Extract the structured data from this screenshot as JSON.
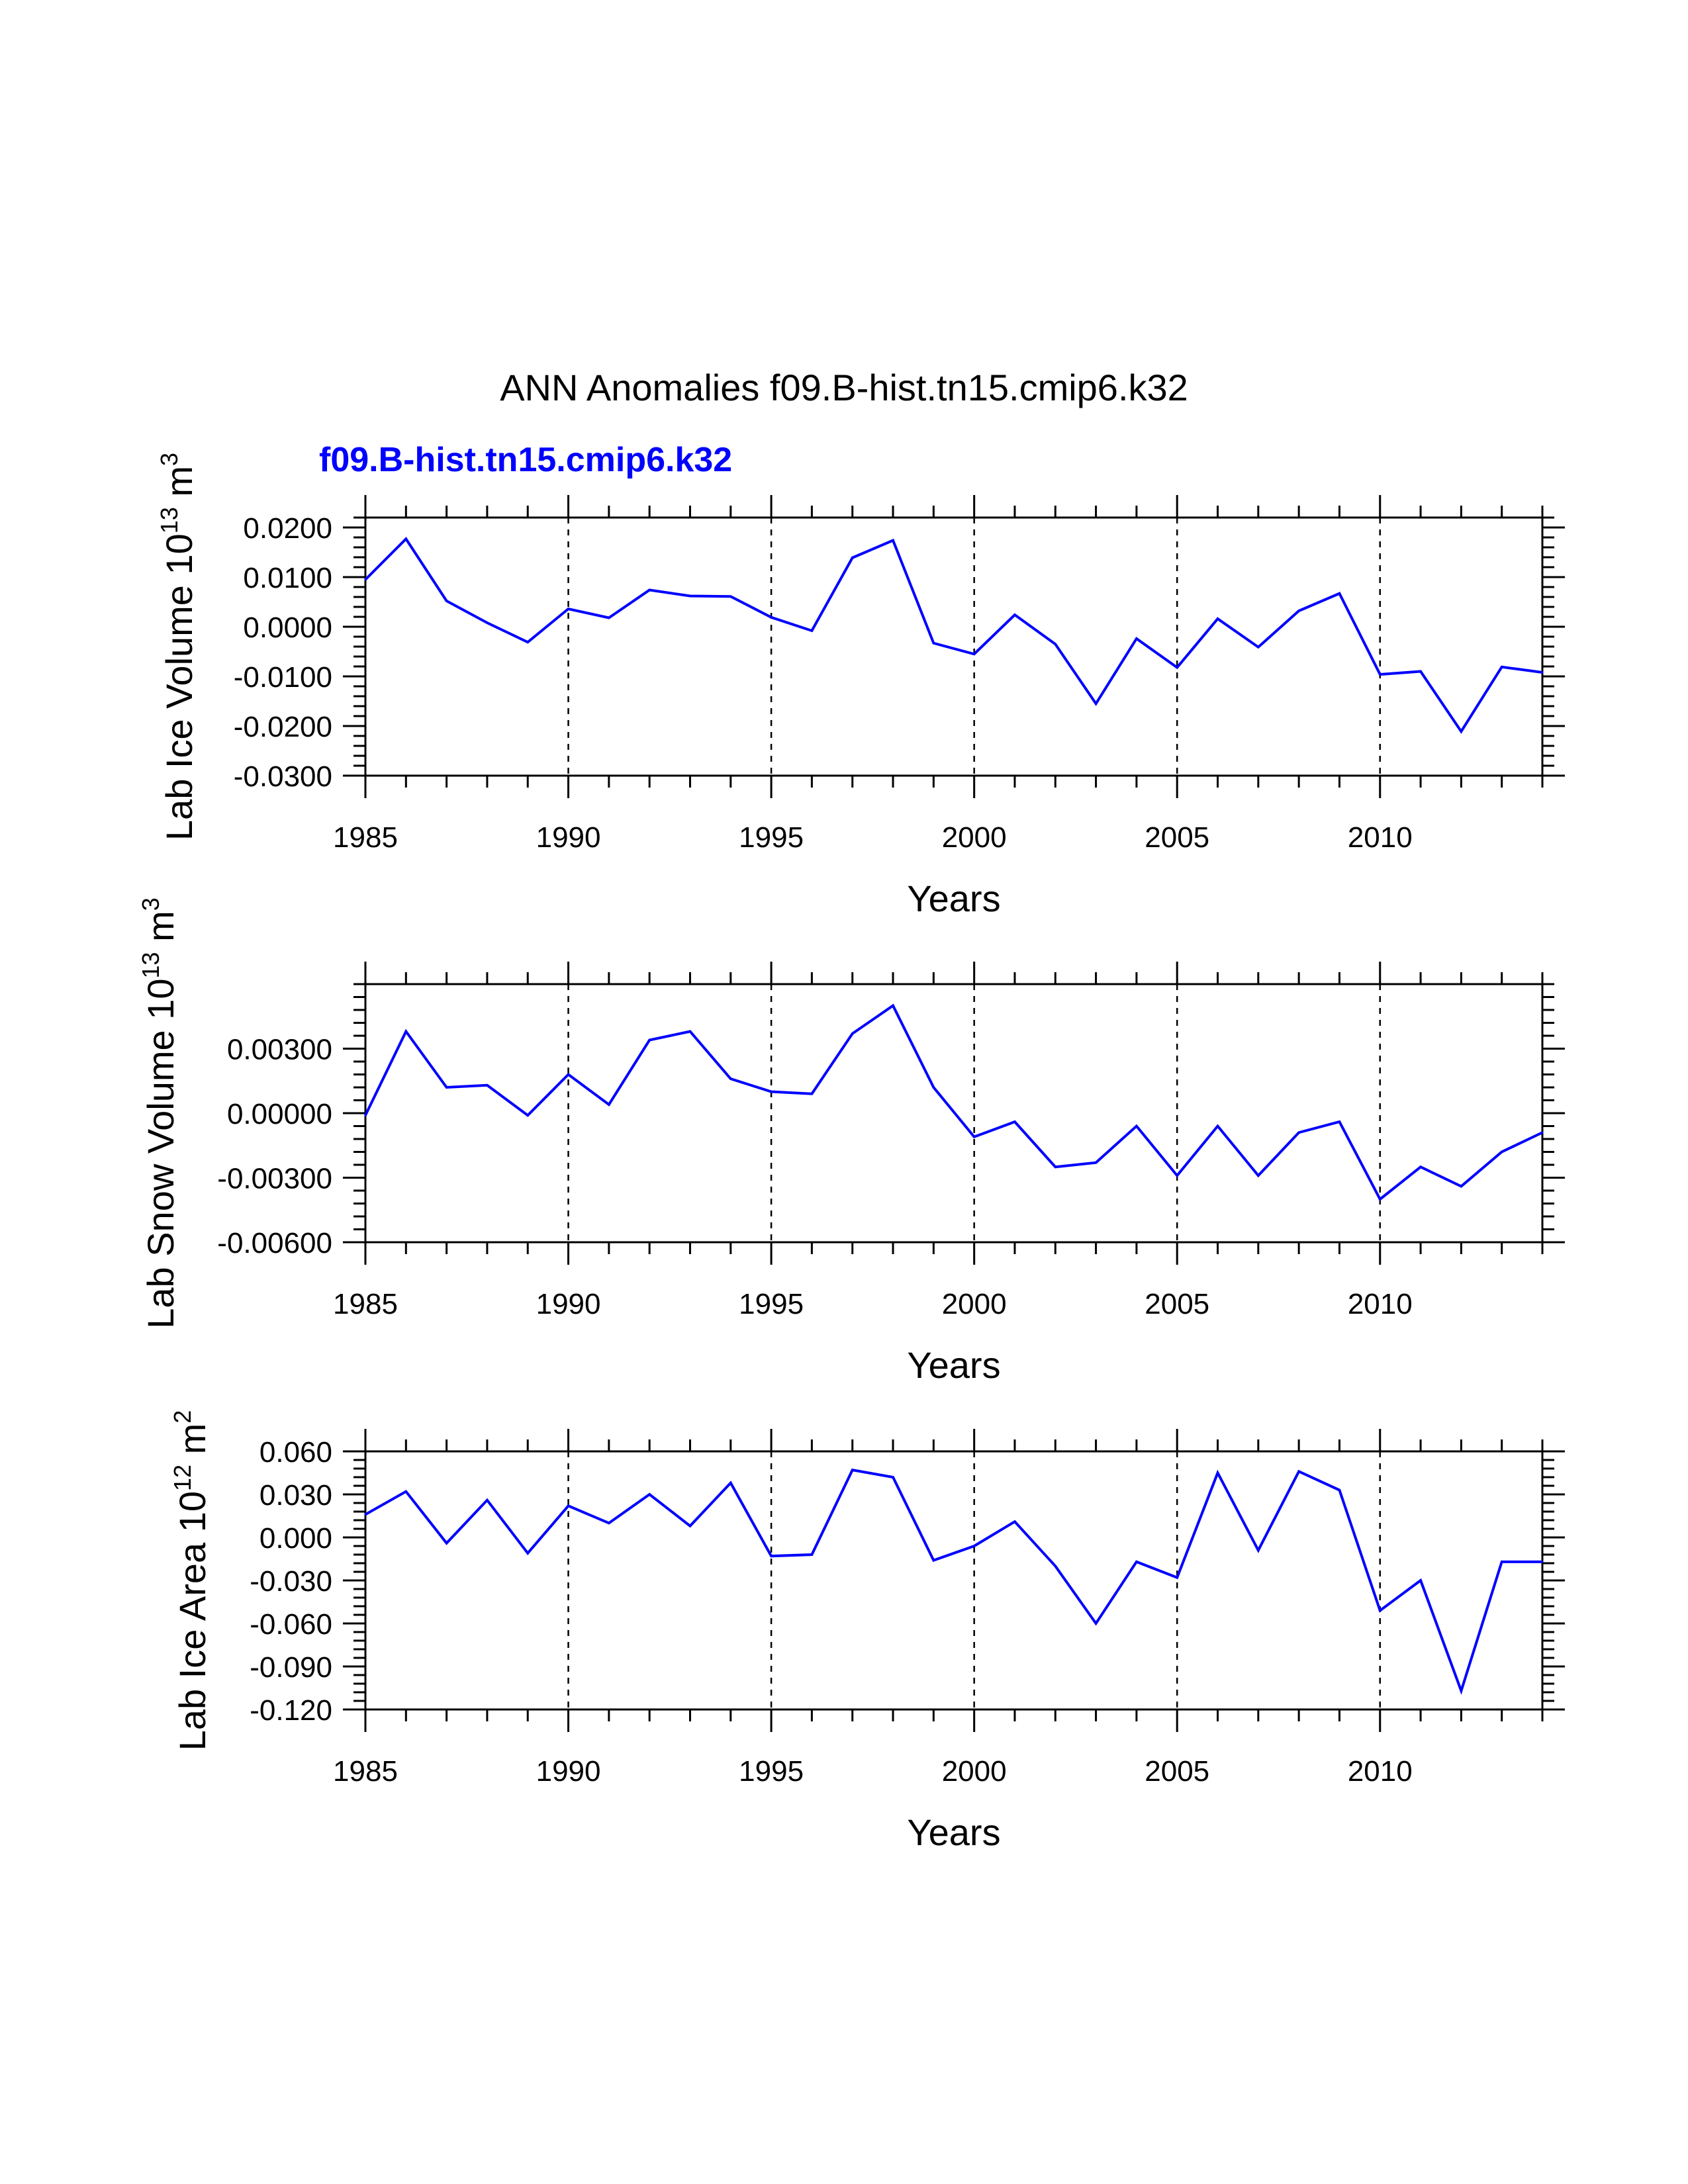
{
  "title": "ANN Anomalies f09.B-hist.tn15.cmip6.k32",
  "case_label": "f09.B-hist.tn15.cmip6.k32",
  "colors": {
    "series": "#0000ff",
    "axes": "#000000",
    "grid": "#000000"
  },
  "chart_data": [
    {
      "type": "line",
      "name": "lab-ice-volume",
      "ylabel_main": "Lab Ice Volume 10",
      "ylabel_exp": "13",
      "ylabel_unit": " m",
      "ylabel_unit_exp": "3",
      "xlabel": "Years",
      "xlim": [
        1985,
        2014
      ],
      "ylim": [
        -0.03,
        0.022
      ],
      "xticks": [
        "1985",
        "1990",
        "1995",
        "2000",
        "2005",
        "2010"
      ],
      "yticks": [
        "0.0200",
        "0.0100",
        "0.0000",
        "-0.0100",
        "-0.0200",
        "-0.0300"
      ],
      "ytick_values": [
        0.02,
        0.01,
        0.0,
        -0.01,
        -0.02,
        -0.03
      ],
      "grid_x": [
        1990,
        1995,
        2000,
        2005,
        2010
      ],
      "series": [
        {
          "name": "f09.B-hist.tn15.cmip6.k32",
          "x": [
            1985,
            1986,
            1987,
            1988,
            1989,
            1990,
            1991,
            1992,
            1993,
            1994,
            1995,
            1996,
            1997,
            1998,
            1999,
            2000,
            2001,
            2002,
            2003,
            2004,
            2005,
            2006,
            2007,
            2008,
            2009,
            2010,
            2011,
            2012,
            2013,
            2014
          ],
          "values": [
            0.0095,
            0.0177,
            0.0052,
            0.0008,
            -0.0031,
            0.0036,
            0.0018,
            0.0074,
            0.0062,
            0.0061,
            0.0019,
            -0.0008,
            0.0139,
            0.0174,
            -0.0033,
            -0.0055,
            0.0024,
            -0.0035,
            -0.0155,
            -0.0024,
            -0.0082,
            0.0016,
            -0.0041,
            0.0032,
            0.0067,
            -0.0096,
            -0.009,
            -0.0211,
            -0.0081,
            -0.0092
          ]
        }
      ]
    },
    {
      "type": "line",
      "name": "lab-snow-volume",
      "ylabel_main": "Lab Snow Volume 10",
      "ylabel_exp": "13",
      "ylabel_unit": " m",
      "ylabel_unit_exp": "3",
      "xlabel": "Years",
      "xlim": [
        1985,
        2014
      ],
      "ylim": [
        -0.006,
        0.006
      ],
      "xticks": [
        "1985",
        "1990",
        "1995",
        "2000",
        "2005",
        "2010"
      ],
      "yticks": [
        "0.00300",
        "0.00000",
        "-0.00300",
        "-0.00600"
      ],
      "ytick_values": [
        0.003,
        0.0,
        -0.003,
        -0.006
      ],
      "grid_x": [
        1990,
        1995,
        2000,
        2005,
        2010
      ],
      "series": [
        {
          "name": "f09.B-hist.tn15.cmip6.k32",
          "x": [
            1985,
            1986,
            1987,
            1988,
            1989,
            1990,
            1991,
            1992,
            1993,
            1994,
            1995,
            1996,
            1997,
            1998,
            1999,
            2000,
            2001,
            2002,
            2003,
            2004,
            2005,
            2006,
            2007,
            2008,
            2009,
            2010,
            2011,
            2012,
            2013,
            2014
          ],
          "values": [
            -0.0001,
            0.0038,
            0.0012,
            0.0013,
            -0.0001,
            0.0018,
            0.0004,
            0.0034,
            0.0038,
            0.0016,
            0.001,
            0.0009,
            0.0037,
            0.005,
            0.0012,
            -0.0011,
            -0.0004,
            -0.0025,
            -0.0023,
            -0.0006,
            -0.0029,
            -0.0006,
            -0.0029,
            -0.0009,
            -0.0004,
            -0.004,
            -0.0025,
            -0.0034,
            -0.0018,
            -0.0009
          ]
        }
      ]
    },
    {
      "type": "line",
      "name": "lab-ice-area",
      "ylabel_main": "Lab Ice Area 10",
      "ylabel_exp": "12",
      "ylabel_unit": " m",
      "ylabel_unit_exp": "2",
      "xlabel": "Years",
      "xlim": [
        1985,
        2014
      ],
      "ylim": [
        -0.12,
        0.06
      ],
      "xticks": [
        "1985",
        "1990",
        "1995",
        "2000",
        "2005",
        "2010"
      ],
      "yticks": [
        "0.060",
        "0.030",
        "0.000",
        "-0.030",
        "-0.060",
        "-0.090",
        "-0.120"
      ],
      "ytick_values": [
        0.06,
        0.03,
        0.0,
        -0.03,
        -0.06,
        -0.09,
        -0.12
      ],
      "grid_x": [
        1990,
        1995,
        2000,
        2005,
        2010
      ],
      "series": [
        {
          "name": "f09.B-hist.tn15.cmip6.k32",
          "x": [
            1985,
            1986,
            1987,
            1988,
            1989,
            1990,
            1991,
            1992,
            1993,
            1994,
            1995,
            1996,
            1997,
            1998,
            1999,
            2000,
            2001,
            2002,
            2003,
            2004,
            2005,
            2006,
            2007,
            2008,
            2009,
            2010,
            2011,
            2012,
            2013,
            2014
          ],
          "values": [
            0.016,
            0.032,
            -0.004,
            0.026,
            -0.011,
            0.022,
            0.01,
            0.03,
            0.008,
            0.038,
            -0.013,
            -0.012,
            0.047,
            0.042,
            -0.016,
            -0.006,
            0.011,
            -0.02,
            -0.06,
            -0.017,
            -0.028,
            0.045,
            -0.009,
            0.046,
            0.033,
            -0.051,
            -0.03,
            -0.107,
            -0.017,
            -0.017
          ]
        }
      ]
    }
  ]
}
